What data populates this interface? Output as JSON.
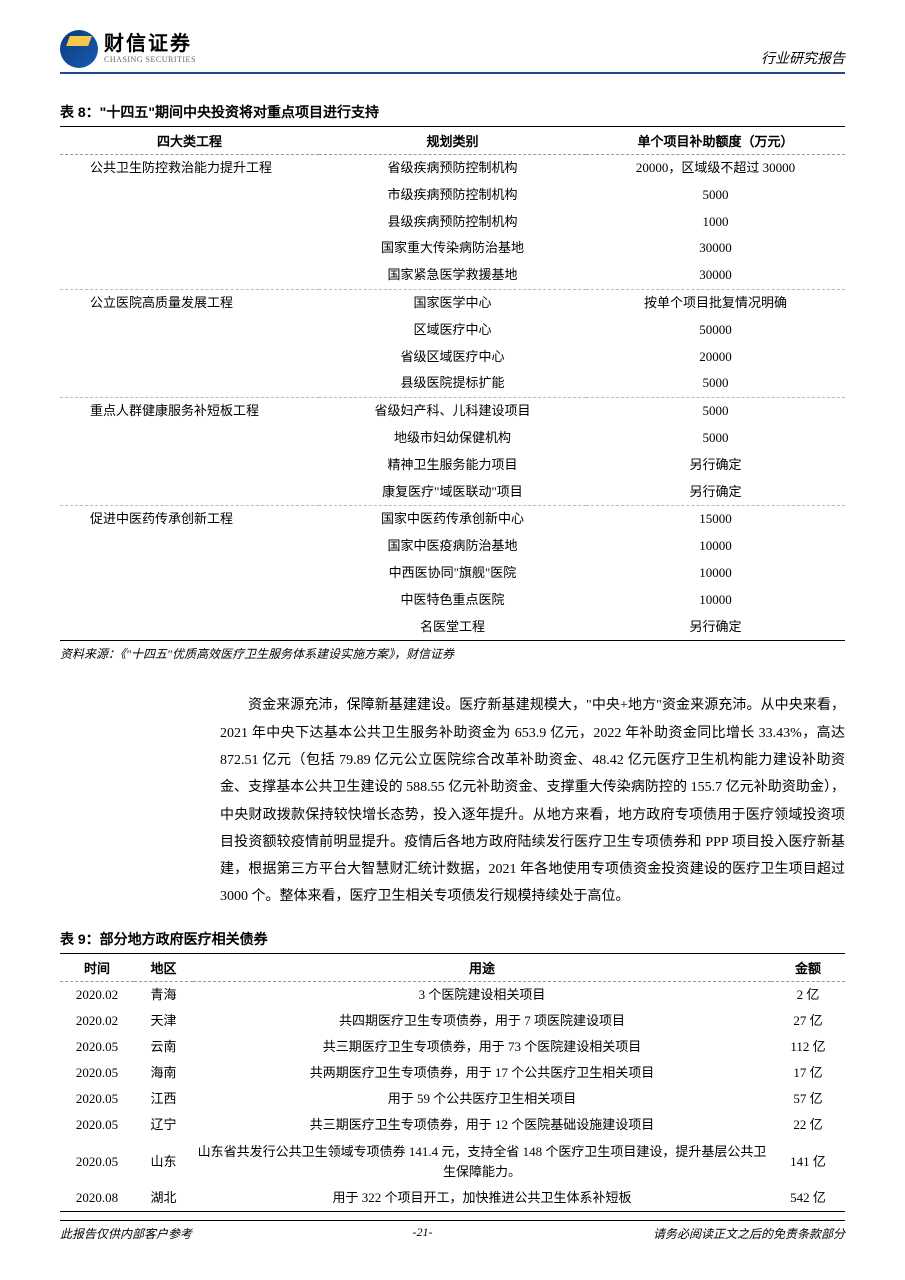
{
  "header": {
    "logo_cn": "财信证券",
    "logo_en": "CHASING SECURITIES",
    "doc_type": "行业研究报告"
  },
  "table8": {
    "caption": "表 8：\"十四五\"期间中央投资将对重点项目进行支持",
    "headers": [
      "四大类工程",
      "规划类别",
      "单个项目补助额度（万元）"
    ],
    "groups": [
      {
        "name": "公共卫生防控救治能力提升工程",
        "rows": [
          [
            "省级疾病预防控制机构",
            "20000，区域级不超过 30000"
          ],
          [
            "市级疾病预防控制机构",
            "5000"
          ],
          [
            "县级疾病预防控制机构",
            "1000"
          ],
          [
            "国家重大传染病防治基地",
            "30000"
          ],
          [
            "国家紧急医学救援基地",
            "30000"
          ]
        ]
      },
      {
        "name": "公立医院高质量发展工程",
        "rows": [
          [
            "国家医学中心",
            "按单个项目批复情况明确"
          ],
          [
            "区域医疗中心",
            "50000"
          ],
          [
            "省级区域医疗中心",
            "20000"
          ],
          [
            "县级医院提标扩能",
            "5000"
          ]
        ]
      },
      {
        "name": "重点人群健康服务补短板工程",
        "rows": [
          [
            "省级妇产科、儿科建设项目",
            "5000"
          ],
          [
            "地级市妇幼保健机构",
            "5000"
          ],
          [
            "精神卫生服务能力项目",
            "另行确定"
          ],
          [
            "康复医疗\"域医联动\"项目",
            "另行确定"
          ]
        ]
      },
      {
        "name": "促进中医药传承创新工程",
        "rows": [
          [
            "国家中医药传承创新中心",
            "15000"
          ],
          [
            "国家中医疫病防治基地",
            "10000"
          ],
          [
            "中西医协同\"旗舰\"医院",
            "10000"
          ],
          [
            "中医特色重点医院",
            "10000"
          ],
          [
            "名医堂工程",
            "另行确定"
          ]
        ]
      }
    ],
    "source": "资料来源：《\"十四五\"优质高效医疗卫生服务体系建设实施方案》，财信证券"
  },
  "body": {
    "text": "资金来源充沛，保障新基建建设。医疗新基建规模大，\"中央+地方\"资金来源充沛。从中央来看，2021 年中央下达基本公共卫生服务补助资金为 653.9 亿元，2022 年补助资金同比增长 33.43%，高达 872.51 亿元（包括 79.89 亿元公立医院综合改革补助资金、48.42 亿元医疗卫生机构能力建设补助资金、支撑基本公共卫生建设的 588.55 亿元补助资金、支撑重大传染病防控的 155.7 亿元补助资助金），中央财政拨款保持较快增长态势，投入逐年提升。从地方来看，地方政府专项债用于医疗领域投资项目投资额较疫情前明显提升。疫情后各地方政府陆续发行医疗卫生专项债券和 PPP 项目投入医疗新基建，根据第三方平台大智慧财汇统计数据，2021 年各地使用专项债资金投资建设的医疗卫生项目超过 3000 个。整体来看，医疗卫生相关专项债发行规模持续处于高位。"
  },
  "table9": {
    "caption": "表 9：部分地方政府医疗相关债券",
    "headers": [
      "时间",
      "地区",
      "用途",
      "金额"
    ],
    "rows": [
      [
        "2020.02",
        "青海",
        "3 个医院建设相关项目",
        "2 亿"
      ],
      [
        "2020.02",
        "天津",
        "共四期医疗卫生专项债券，用于 7 项医院建设项目",
        "27 亿"
      ],
      [
        "2020.05",
        "云南",
        "共三期医疗卫生专项债券，用于 73 个医院建设相关项目",
        "112 亿"
      ],
      [
        "2020.05",
        "海南",
        "共两期医疗卫生专项债券，用于 17 个公共医疗卫生相关项目",
        "17 亿"
      ],
      [
        "2020.05",
        "江西",
        "用于 59 个公共医疗卫生相关项目",
        "57 亿"
      ],
      [
        "2020.05",
        "辽宁",
        "共三期医疗卫生专项债券，用于 12 个医院基础设施建设项目",
        "22 亿"
      ],
      [
        "2020.05",
        "山东",
        "山东省共发行公共卫生领域专项债券 141.4 元，支持全省 148 个医疗卫生项目建设，提升基层公共卫生保障能力。",
        "141 亿"
      ],
      [
        "2020.08",
        "湖北",
        "用于 322 个项目开工，加快推进公共卫生体系补短板",
        "542 亿"
      ]
    ]
  },
  "footer": {
    "left": "此报告仅供内部客户参考",
    "center": "-21-",
    "right": "请务必阅读正文之后的免责条款部分"
  }
}
